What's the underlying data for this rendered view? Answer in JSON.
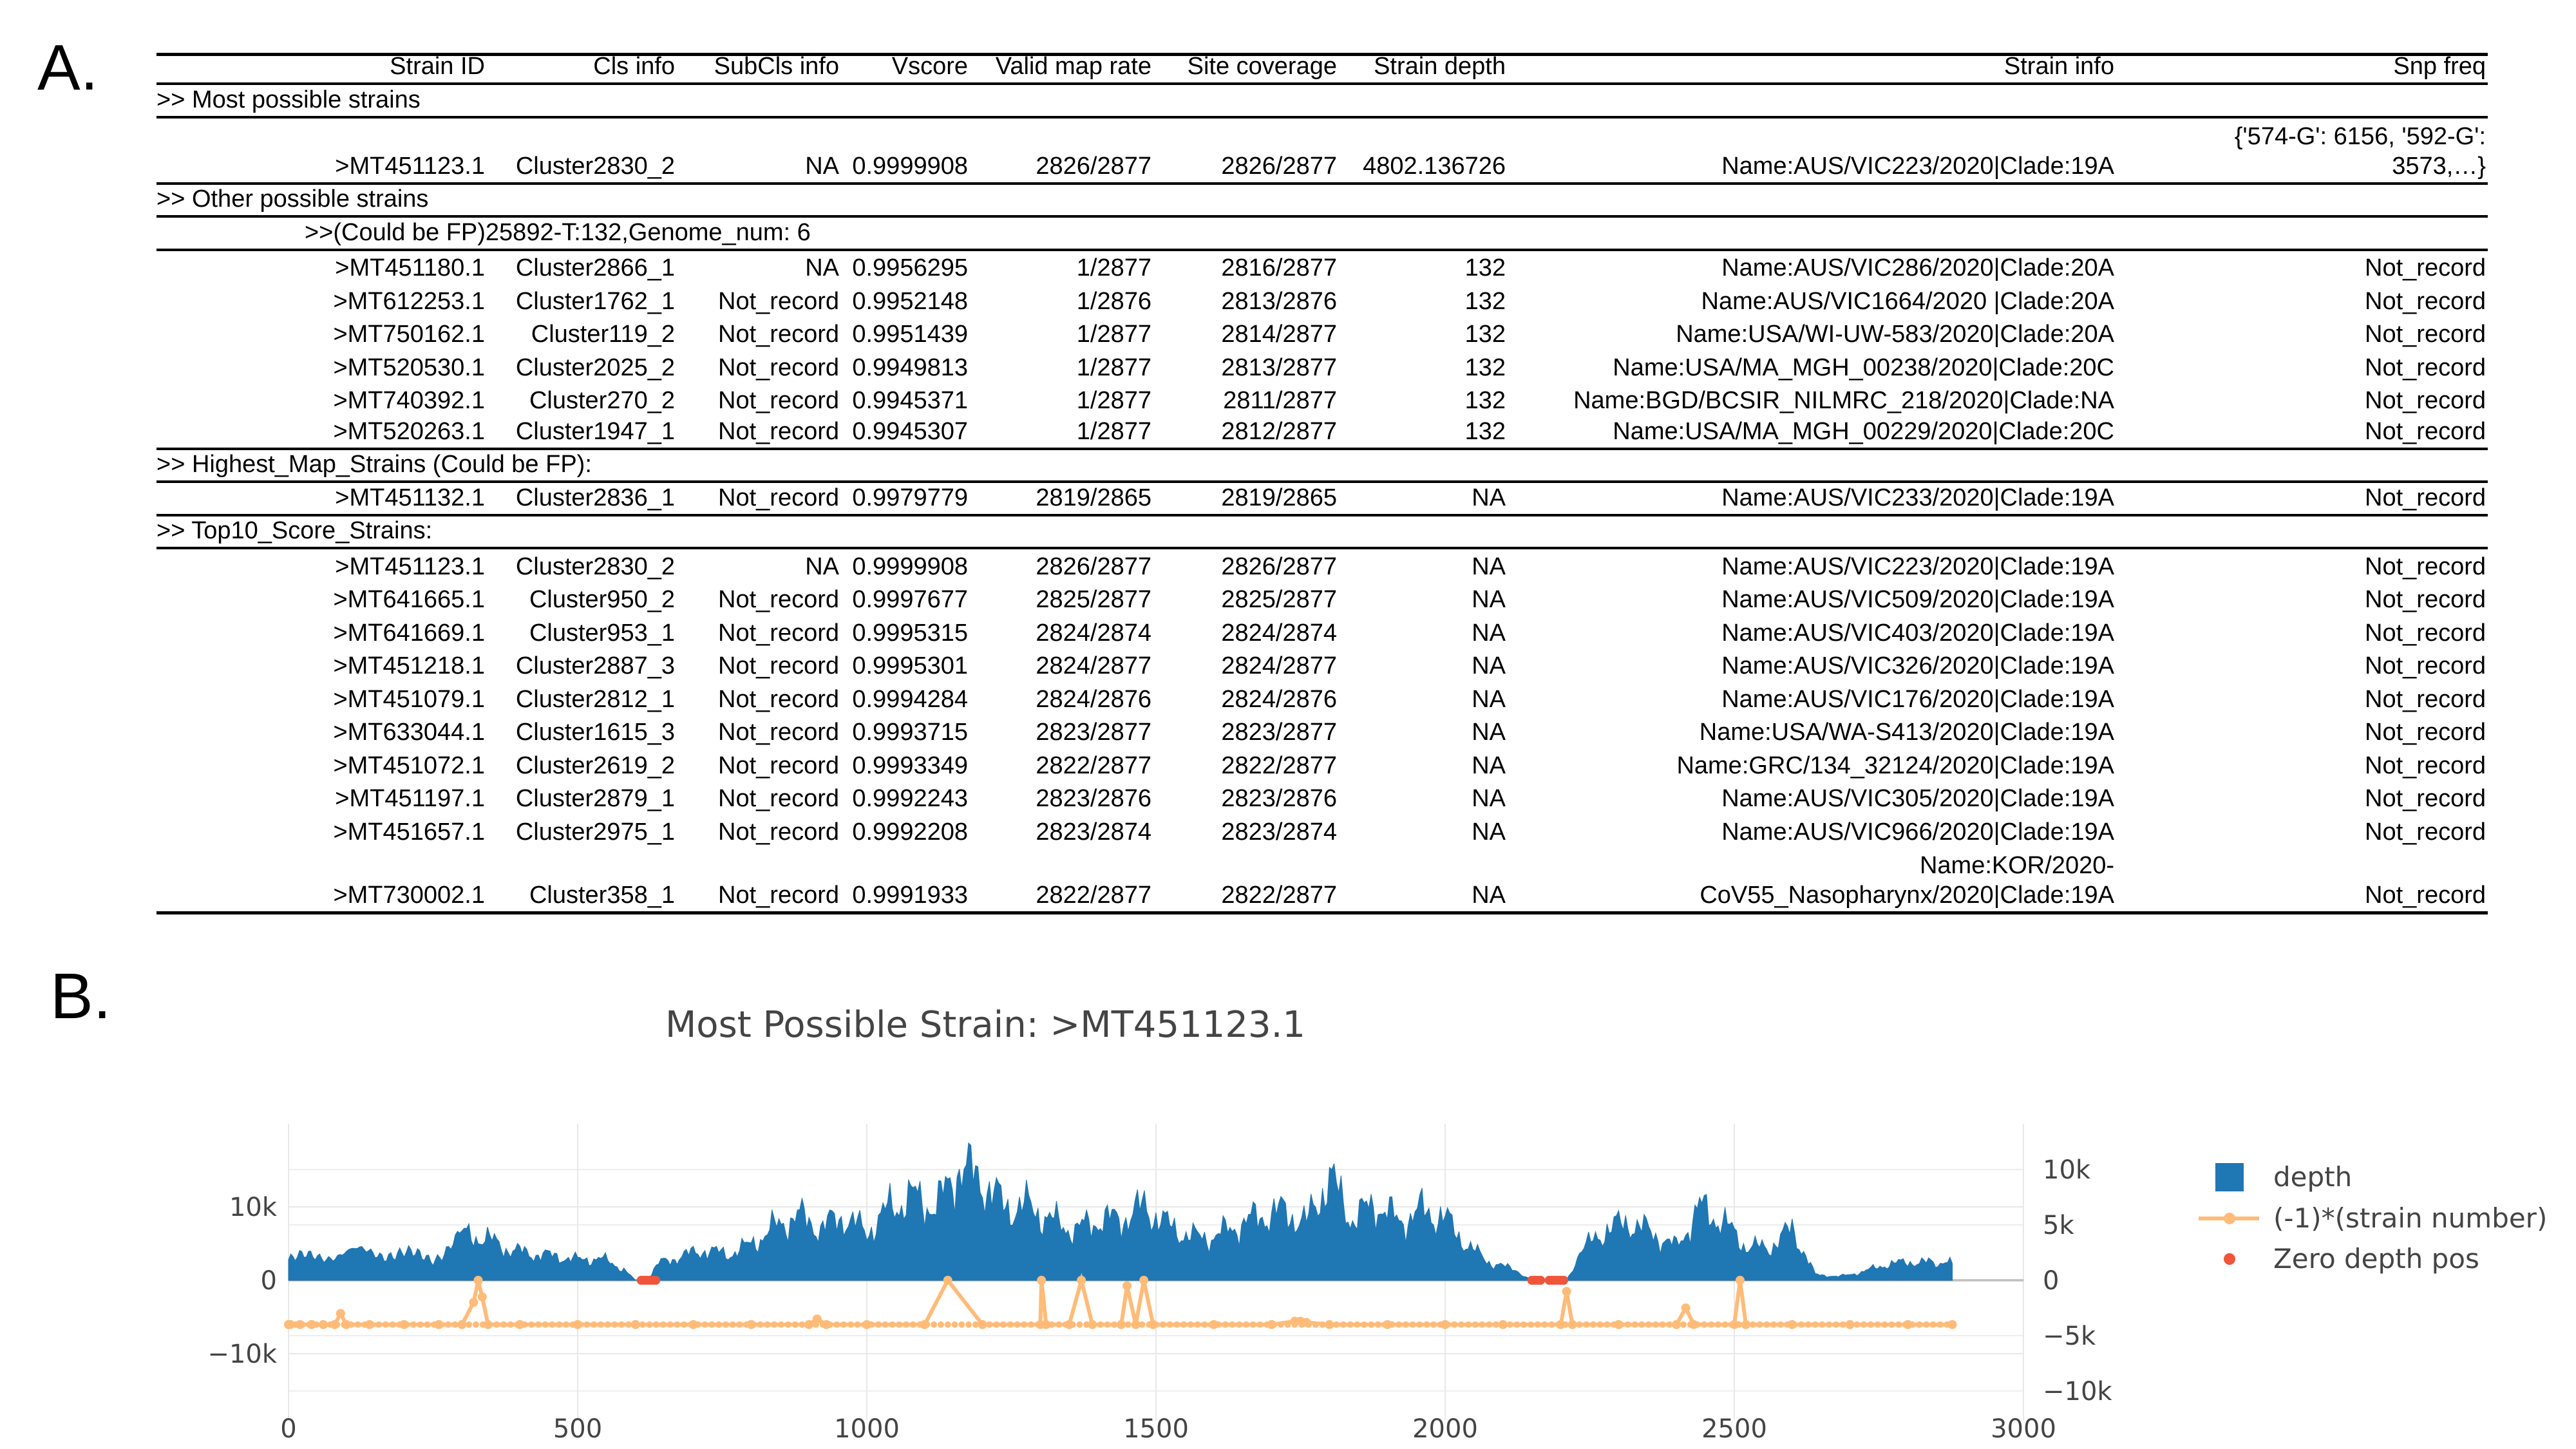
{
  "panels": {
    "a": "A.",
    "b": "B."
  },
  "table": {
    "headers": [
      "Strain ID",
      "Cls info",
      "SubCls info",
      "Vscore",
      "Valid map rate",
      "Site coverage",
      "Strain depth",
      "Strain info",
      "Snp freq"
    ],
    "sections": [
      {
        "title": ">> Most possible strains",
        "rows": [
          {
            "id": ">MT451123.1",
            "cls": "Cluster2830_2",
            "subcls": "NA",
            "vscore": "0.9999908",
            "map": "2826/2877",
            "cov": "2826/2877",
            "depth": "4802.136726",
            "info": "Name:AUS/VIC223/2020|Clade:19A",
            "snp": "{'574-G': 6156, '592-G': 3573,…}"
          }
        ]
      },
      {
        "title": ">> Other possible strains",
        "subtitle": ">>(Could be FP)25892-T:132,Genome_num: 6",
        "rows": [
          {
            "id": ">MT451180.1",
            "cls": "Cluster2866_1",
            "subcls": "NA",
            "vscore": "0.9956295",
            "map": "1/2877",
            "cov": "2816/2877",
            "depth": "132",
            "info": "Name:AUS/VIC286/2020|Clade:20A",
            "snp": "Not_record"
          },
          {
            "id": ">MT612253.1",
            "cls": "Cluster1762_1",
            "subcls": "Not_record",
            "vscore": "0.9952148",
            "map": "1/2876",
            "cov": "2813/2876",
            "depth": "132",
            "info": "Name:AUS/VIC1664/2020 |Clade:20A",
            "snp": "Not_record"
          },
          {
            "id": ">MT750162.1",
            "cls": "Cluster119_2",
            "subcls": "Not_record",
            "vscore": "0.9951439",
            "map": "1/2877",
            "cov": "2814/2877",
            "depth": "132",
            "info": "Name:USA/WI-UW-583/2020|Clade:20A",
            "snp": "Not_record"
          },
          {
            "id": ">MT520530.1",
            "cls": "Cluster2025_2",
            "subcls": "Not_record",
            "vscore": "0.9949813",
            "map": "1/2877",
            "cov": "2813/2877",
            "depth": "132",
            "info": "Name:USA/MA_MGH_00238/2020|Clade:20C",
            "snp": "Not_record"
          },
          {
            "id": ">MT740392.1",
            "cls": "Cluster270_2",
            "subcls": "Not_record",
            "vscore": "0.9945371",
            "map": "1/2877",
            "cov": "2811/2877",
            "depth": "132",
            "info": "Name:BGD/BCSIR_NILMRC_218/2020|Clade:NA",
            "snp": "Not_record"
          },
          {
            "id": ">MT520263.1",
            "cls": "Cluster1947_1",
            "subcls": "Not_record",
            "vscore": "0.9945307",
            "map": "1/2877",
            "cov": "2812/2877",
            "depth": "132",
            "info": "Name:USA/MA_MGH_00229/2020|Clade:20C",
            "snp": "Not_record"
          }
        ]
      },
      {
        "title": ">> Highest_Map_Strains (Could be FP):",
        "rows": [
          {
            "id": ">MT451132.1",
            "cls": "Cluster2836_1",
            "subcls": "Not_record",
            "vscore": "0.9979779",
            "map": "2819/2865",
            "cov": "2819/2865",
            "depth": "NA",
            "info": "Name:AUS/VIC233/2020|Clade:19A",
            "snp": "Not_record"
          }
        ]
      },
      {
        "title": ">> Top10_Score_Strains:",
        "rows": [
          {
            "id": ">MT451123.1",
            "cls": "Cluster2830_2",
            "subcls": "NA",
            "vscore": "0.9999908",
            "map": "2826/2877",
            "cov": "2826/2877",
            "depth": "NA",
            "info": "Name:AUS/VIC223/2020|Clade:19A",
            "snp": "Not_record"
          },
          {
            "id": ">MT641665.1",
            "cls": "Cluster950_2",
            "subcls": "Not_record",
            "vscore": "0.9997677",
            "map": "2825/2877",
            "cov": "2825/2877",
            "depth": "NA",
            "info": "Name:AUS/VIC509/2020|Clade:19A",
            "snp": "Not_record"
          },
          {
            "id": ">MT641669.1",
            "cls": "Cluster953_1",
            "subcls": "Not_record",
            "vscore": "0.9995315",
            "map": "2824/2874",
            "cov": "2824/2874",
            "depth": "NA",
            "info": "Name:AUS/VIC403/2020|Clade:19A",
            "snp": "Not_record"
          },
          {
            "id": ">MT451218.1",
            "cls": "Cluster2887_3",
            "subcls": "Not_record",
            "vscore": "0.9995301",
            "map": "2824/2877",
            "cov": "2824/2877",
            "depth": "NA",
            "info": "Name:AUS/VIC326/2020|Clade:19A",
            "snp": "Not_record"
          },
          {
            "id": ">MT451079.1",
            "cls": "Cluster2812_1",
            "subcls": "Not_record",
            "vscore": "0.9994284",
            "map": "2824/2876",
            "cov": "2824/2876",
            "depth": "NA",
            "info": "Name:AUS/VIC176/2020|Clade:19A",
            "snp": "Not_record"
          },
          {
            "id": ">MT633044.1",
            "cls": "Cluster1615_3",
            "subcls": "Not_record",
            "vscore": "0.9993715",
            "map": "2823/2877",
            "cov": "2823/2877",
            "depth": "NA",
            "info": "Name:USA/WA-S413/2020|Clade:19A",
            "snp": "Not_record"
          },
          {
            "id": ">MT451072.1",
            "cls": "Cluster2619_2",
            "subcls": "Not_record",
            "vscore": "0.9993349",
            "map": "2822/2877",
            "cov": "2822/2877",
            "depth": "NA",
            "info": "Name:GRC/134_32124/2020|Clade:19A",
            "snp": "Not_record"
          },
          {
            "id": ">MT451197.1",
            "cls": "Cluster2879_1",
            "subcls": "Not_record",
            "vscore": "0.9992243",
            "map": "2823/2876",
            "cov": "2823/2876",
            "depth": "NA",
            "info": "Name:AUS/VIC305/2020|Clade:19A",
            "snp": "Not_record"
          },
          {
            "id": ">MT451657.1",
            "cls": "Cluster2975_1",
            "subcls": "Not_record",
            "vscore": "0.9992208",
            "map": "2823/2874",
            "cov": "2823/2874",
            "depth": "NA",
            "info": "Name:AUS/VIC966/2020|Clade:19A",
            "snp": "Not_record"
          },
          {
            "id": ">MT730002.1",
            "cls": "Cluster358_1",
            "subcls": "Not_record",
            "vscore": "0.9991933",
            "map": "2822/2877",
            "cov": "2822/2877",
            "depth": "NA",
            "info": "Name:KOR/2020-CoV55_Nasopharynx/2020|Clade:19A",
            "snp": "Not_record"
          }
        ]
      }
    ]
  },
  "chart_data": {
    "type": "area",
    "title": "Most Possible Strain: >MT451123.1",
    "xlim": [
      0,
      3000
    ],
    "x_ticks": [
      0,
      500,
      1000,
      1500,
      2000,
      2500,
      3000
    ],
    "y_left": {
      "range": [
        -15000,
        15000
      ],
      "ticks": [
        -10000,
        0,
        10000
      ],
      "tick_labels": [
        "−10k",
        "0",
        "10k"
      ]
    },
    "y_right": {
      "range": [
        -10000,
        12000
      ],
      "ticks": [
        -10000,
        -5000,
        0,
        5000,
        10000
      ],
      "tick_labels": [
        "−10k",
        "−5k",
        "0",
        "5k",
        "10k"
      ]
    },
    "legend": [
      "depth",
      "(-1)*(strain number)",
      "Zero depth pos"
    ],
    "legend_position": "right",
    "colors": {
      "depth": "#1f77b4",
      "strain": "#ffbb78",
      "zero": "#ef553b",
      "grid": "#e8e8e8",
      "title": "#444444"
    },
    "series": [
      {
        "name": "depth",
        "kind": "area",
        "x": [
          0,
          50,
          100,
          150,
          200,
          250,
          300,
          340,
          380,
          420,
          460,
          500,
          540,
          580,
          600,
          620,
          640,
          680,
          720,
          760,
          800,
          840,
          880,
          920,
          960,
          1000,
          1040,
          1080,
          1120,
          1160,
          1200,
          1240,
          1280,
          1320,
          1360,
          1400,
          1440,
          1480,
          1520,
          1560,
          1600,
          1640,
          1680,
          1720,
          1760,
          1800,
          1840,
          1880,
          1920,
          1960,
          2000,
          2040,
          2080,
          2120,
          2150,
          2170,
          2190,
          2210,
          2240,
          2280,
          2320,
          2360,
          2400,
          2440,
          2480,
          2520,
          2560,
          2600,
          2640,
          2680,
          2720,
          2760,
          2800,
          2840,
          2877
        ],
        "values": [
          2800,
          3300,
          3700,
          3900,
          3500,
          3000,
          6200,
          5800,
          4200,
          3600,
          3300,
          2800,
          3000,
          1500,
          0,
          0,
          2300,
          3300,
          4100,
          3500,
          4900,
          7200,
          8800,
          7100,
          8700,
          6500,
          9900,
          11400,
          9900,
          15500,
          13500,
          9900,
          10100,
          8100,
          6800,
          8200,
          8300,
          10000,
          7500,
          5900,
          5900,
          7400,
          8700,
          9400,
          7800,
          14000,
          8200,
          10500,
          7900,
          9500,
          8400,
          4600,
          2300,
          1500,
          0,
          0,
          0,
          0,
          4300,
          7000,
          7900,
          6300,
          4500,
          9900,
          8000,
          4600,
          4400,
          7000,
          800,
          500,
          1100,
          2100,
          2500,
          2400,
          2300
        ]
      },
      {
        "name": "(-1)*(strain number)",
        "kind": "line+marker",
        "x": [
          0,
          3,
          20,
          40,
          60,
          80,
          90,
          100,
          140,
          200,
          260,
          300,
          320,
          328,
          335,
          345,
          400,
          500,
          600,
          700,
          800,
          900,
          914,
          930,
          1000,
          1100,
          1140,
          1200,
          1300,
          1302,
          1310,
          1350,
          1371,
          1390,
          1440,
          1450,
          1465,
          1479,
          1495,
          1600,
          1700,
          1740,
          1750,
          1760,
          1800,
          1900,
          2000,
          2100,
          2200,
          2210,
          2220,
          2300,
          2400,
          2416,
          2430,
          2500,
          2510,
          2520,
          2600,
          2700,
          2800,
          2877
        ],
        "values": [
          -4000,
          -4000,
          -4000,
          -4000,
          -4000,
          -4000,
          -3000,
          -4000,
          -4000,
          -4000,
          -4000,
          -4000,
          -2000,
          0,
          -1500,
          -4000,
          -4000,
          -4000,
          -4000,
          -4000,
          -4000,
          -4000,
          -3500,
          -4000,
          -4000,
          -4000,
          0,
          -4000,
          -4000,
          0,
          -4000,
          -4000,
          0,
          -4000,
          -4000,
          -500,
          -4000,
          0,
          -4000,
          -4000,
          -4000,
          -3700,
          -3700,
          -3800,
          -4000,
          -4000,
          -4000,
          -4000,
          -4000,
          -1000,
          -4000,
          -4000,
          -4000,
          -2500,
          -4000,
          -4000,
          0,
          -4000,
          -4000,
          -4000,
          -4000,
          -4000
        ]
      },
      {
        "name": "Zero depth pos",
        "kind": "marker",
        "x": [
          610,
          615,
          620,
          625,
          630,
          635,
          2150,
          2155,
          2160,
          2165,
          2180,
          2185,
          2190,
          2195,
          2200,
          2205
        ],
        "values": [
          0,
          0,
          0,
          0,
          0,
          0,
          0,
          0,
          0,
          0,
          0,
          0,
          0,
          0,
          0,
          0
        ]
      }
    ]
  }
}
